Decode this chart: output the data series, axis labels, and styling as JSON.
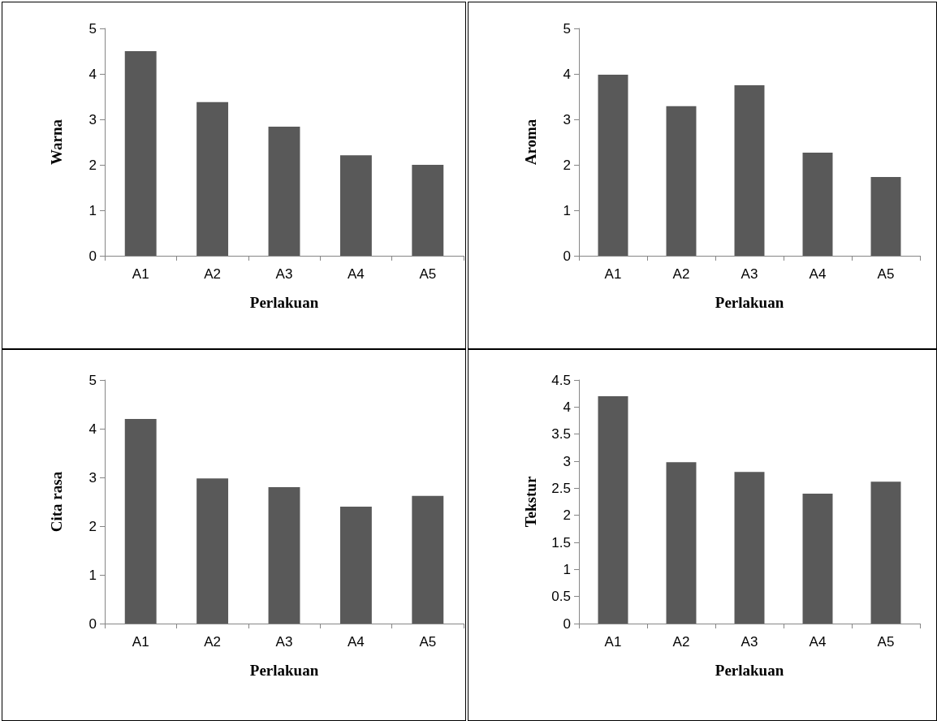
{
  "chart_data": [
    {
      "type": "bar",
      "xlabel": "Perlakuan",
      "ylabel": "Warna",
      "categories": [
        "A1",
        "A2",
        "A3",
        "A4",
        "A5"
      ],
      "values": [
        4.5,
        3.38,
        2.84,
        2.21,
        2.0
      ],
      "color": "#595959",
      "ylim": [
        0,
        5
      ],
      "yticks": [
        0,
        1,
        2,
        3,
        4,
        5
      ],
      "grid": false
    },
    {
      "type": "bar",
      "xlabel": "Perlakuan",
      "ylabel": "Aroma",
      "categories": [
        "A1",
        "A2",
        "A3",
        "A4",
        "A5"
      ],
      "values": [
        3.98,
        3.29,
        3.75,
        2.27,
        1.73
      ],
      "color": "#595959",
      "ylim": [
        0,
        5
      ],
      "yticks": [
        0,
        1,
        2,
        3,
        4,
        5
      ],
      "grid": false
    },
    {
      "type": "bar",
      "xlabel": "Perlakuan",
      "ylabel": "Cita rasa",
      "categories": [
        "A1",
        "A2",
        "A3",
        "A4",
        "A5"
      ],
      "values": [
        4.2,
        2.98,
        2.8,
        2.4,
        2.62
      ],
      "color": "#595959",
      "ylim": [
        0,
        5
      ],
      "yticks": [
        0,
        1,
        2,
        3,
        4,
        5
      ],
      "grid": false
    },
    {
      "type": "bar",
      "xlabel": "Perlakuan",
      "ylabel": "Tekstur",
      "categories": [
        "A1",
        "A2",
        "A3",
        "A4",
        "A5"
      ],
      "values": [
        4.2,
        2.98,
        2.8,
        2.4,
        2.62
      ],
      "color": "#595959",
      "ylim": [
        0,
        4.5
      ],
      "yticks": [
        0,
        0.5,
        1,
        1.5,
        2,
        2.5,
        3,
        3.5,
        4,
        4.5
      ],
      "grid": false
    }
  ]
}
